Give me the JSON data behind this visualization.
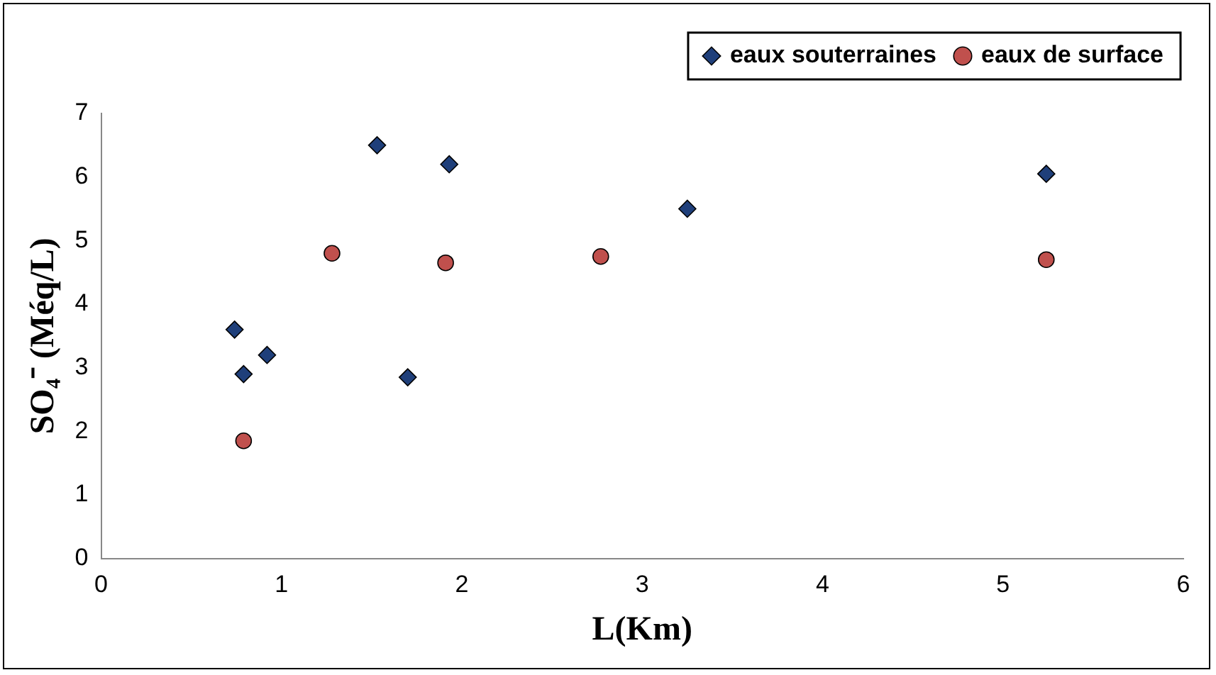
{
  "chart_data": {
    "type": "scatter",
    "xlabel": "L(Km)",
    "ylabel": "SO₄⁻ (Méq/L)",
    "xlim": [
      0,
      6
    ],
    "xticks": [
      0,
      1,
      2,
      3,
      4,
      5,
      6
    ],
    "ylim": [
      0,
      7
    ],
    "yticks": [
      0,
      1,
      2,
      3,
      4,
      5,
      6,
      7
    ],
    "grid": false,
    "legend": "top right",
    "series": [
      {
        "name": "eaux souterraines",
        "color": "#1f3f7a",
        "marker": "diamond",
        "x": [
          0.74,
          0.79,
          0.92,
          1.53,
          1.7,
          1.93,
          3.25,
          5.24
        ],
        "values": [
          3.6,
          2.9,
          3.2,
          6.5,
          2.85,
          6.2,
          5.5,
          6.05
        ]
      },
      {
        "name": "eaux de surface",
        "color": "#c0504d",
        "marker": "circle",
        "x": [
          0.79,
          1.28,
          1.91,
          2.77,
          5.24
        ],
        "values": [
          1.85,
          4.8,
          4.65,
          4.75,
          4.7
        ]
      }
    ]
  }
}
